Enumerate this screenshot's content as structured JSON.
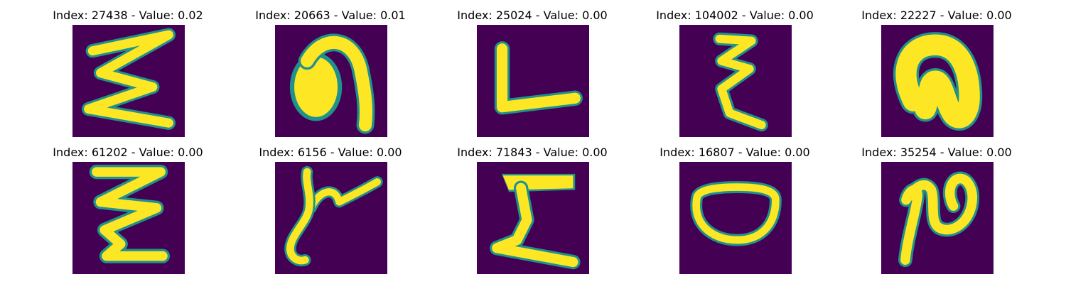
{
  "colors": {
    "background": "#440154",
    "foreground": "#fde725",
    "edge": "#21918c"
  },
  "panels": [
    {
      "title": "Index: 27438 - Value: 0.02",
      "glyph": "sigma-zigzag-wide"
    },
    {
      "title": "Index: 20663 - Value: 0.01",
      "glyph": "arch-filled-left"
    },
    {
      "title": "Index: 25024 - Value: 0.00",
      "glyph": "letter-l"
    },
    {
      "title": "Index: 104002 - Value: 0.00",
      "glyph": "zigzag-narrow"
    },
    {
      "title": "Index: 22227 - Value: 0.00",
      "glyph": "arch-thick"
    },
    {
      "title": "Index: 61202 - Value: 0.00",
      "glyph": "zigzag-tall"
    },
    {
      "title": "Index: 6156 - Value: 0.00",
      "glyph": "lambda-stroke"
    },
    {
      "title": "Index: 71843 - Value: 0.00",
      "glyph": "sigma-block"
    },
    {
      "title": "Index: 16807 - Value: 0.00",
      "glyph": "ring-oval"
    },
    {
      "title": "Index: 35254 - Value: 0.00",
      "glyph": "hook-curve"
    }
  ]
}
